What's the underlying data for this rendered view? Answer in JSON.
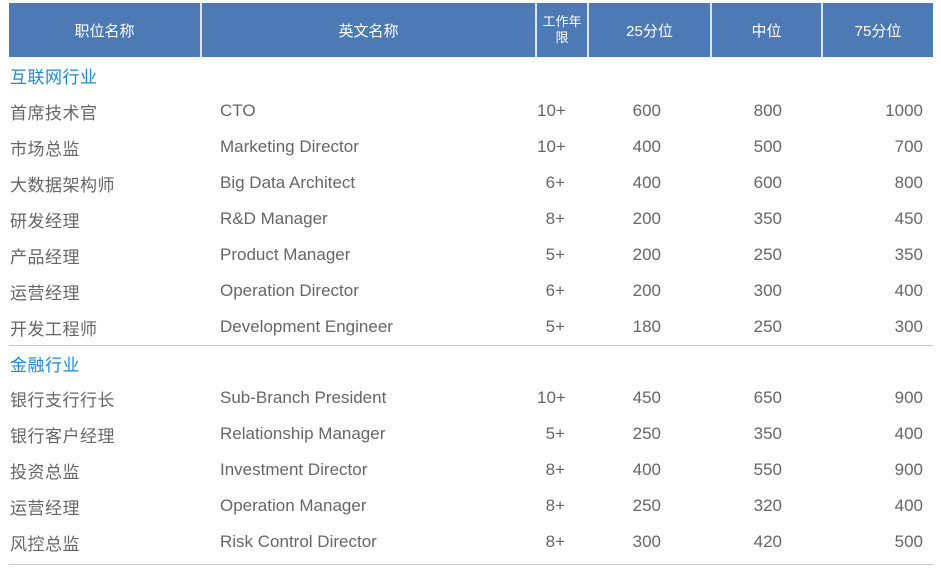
{
  "table": {
    "columns": [
      {
        "key": "cn",
        "label": "职位名称"
      },
      {
        "key": "en",
        "label": "英文名称"
      },
      {
        "key": "years",
        "label": "工作年限"
      },
      {
        "key": "p25",
        "label": "25分位"
      },
      {
        "key": "median",
        "label": "中位"
      },
      {
        "key": "p75",
        "label": "75分位"
      }
    ],
    "sections": [
      {
        "name": "互联网行业",
        "rows": [
          {
            "cn": "首席技术官",
            "en": "CTO",
            "years": "10+",
            "p25": "600",
            "median": "800",
            "p75": "1000"
          },
          {
            "cn": "市场总监",
            "en": "Marketing Director",
            "years": "10+",
            "p25": "400",
            "median": "500",
            "p75": "700"
          },
          {
            "cn": "大数据架构师",
            "en": "Big Data Architect",
            "years": "6+",
            "p25": "400",
            "median": "600",
            "p75": "800"
          },
          {
            "cn": "研发经理",
            "en": "R&D Manager",
            "years": "8+",
            "p25": "200",
            "median": "350",
            "p75": "450"
          },
          {
            "cn": "产品经理",
            "en": "Product Manager",
            "years": "5+",
            "p25": "200",
            "median": "250",
            "p75": "350"
          },
          {
            "cn": "运营经理",
            "en": "Operation Director",
            "years": "6+",
            "p25": "200",
            "median": "300",
            "p75": "400"
          },
          {
            "cn": "开发工程师",
            "en": "Development Engineer",
            "years": "5+",
            "p25": "180",
            "median": "250",
            "p75": "300"
          }
        ]
      },
      {
        "name": "金融行业",
        "rows": [
          {
            "cn": "银行支行行长",
            "en": "Sub-Branch President",
            "years": "10+",
            "p25": "450",
            "median": "650",
            "p75": "900"
          },
          {
            "cn": "银行客户经理",
            "en": "Relationship Manager",
            "years": "5+",
            "p25": "250",
            "median": "350",
            "p75": "400"
          },
          {
            "cn": "投资总监",
            "en": "Investment Director",
            "years": "8+",
            "p25": "400",
            "median": "550",
            "p75": "900"
          },
          {
            "cn": "运营经理",
            "en": "Operation Manager",
            "years": "8+",
            "p25": "250",
            "median": "320",
            "p75": "400"
          },
          {
            "cn": "风控总监",
            "en": "Risk Control Director",
            "years": "8+",
            "p25": "300",
            "median": "420",
            "p75": "500"
          }
        ]
      }
    ]
  },
  "colors": {
    "header_bg": "#4d7ab5",
    "header_text": "#ffffff",
    "section_text": "#2287d2",
    "body_text": "#666666",
    "divider": "#c9c9c9",
    "header_cell_divider": "#d9e5f2"
  }
}
